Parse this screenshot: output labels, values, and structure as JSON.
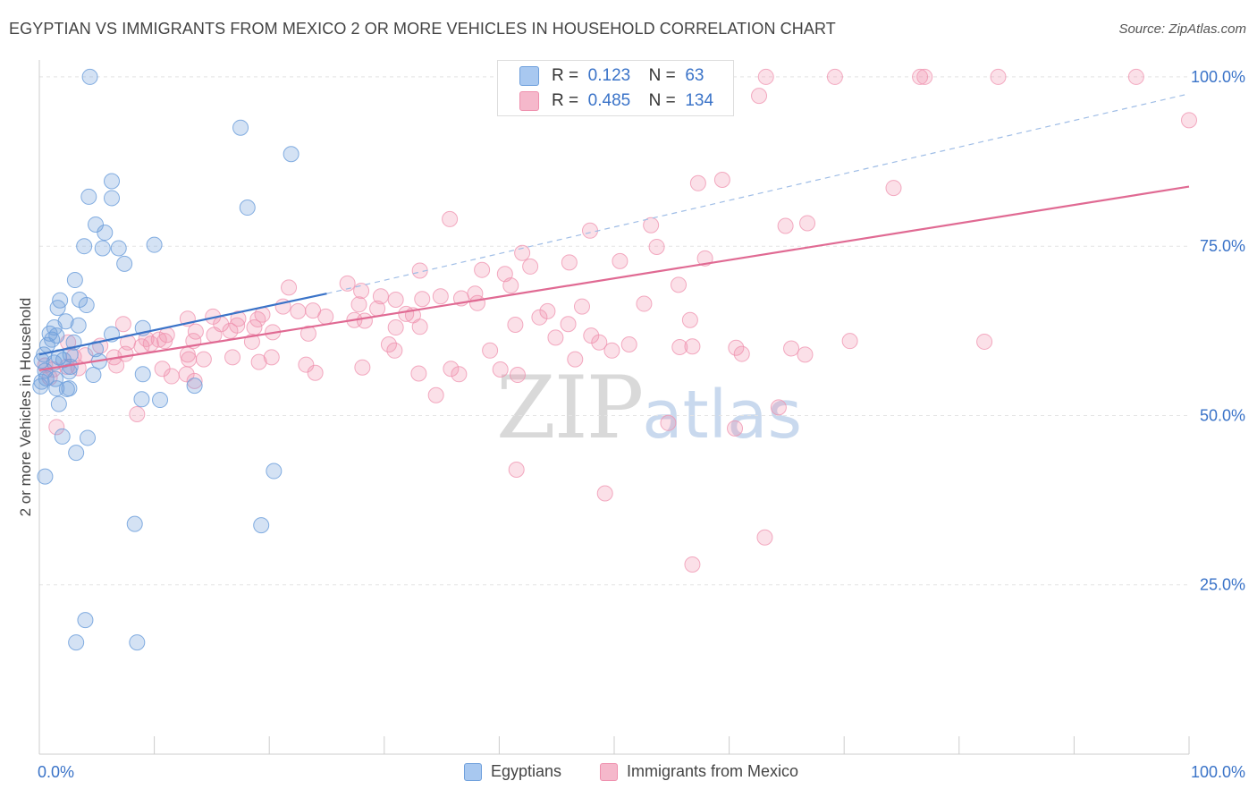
{
  "title": "EGYPTIAN VS IMMIGRANTS FROM MEXICO 2 OR MORE VEHICLES IN HOUSEHOLD CORRELATION CHART",
  "source": "Source: ZipAtlas.com",
  "watermark": {
    "zip": "ZIP",
    "atlas": "atlas"
  },
  "legend_box": {
    "rows": [
      {
        "r_label": "R =",
        "r_value": "0.123",
        "n_label": "N =",
        "n_value": "63",
        "color": "#a8c8f0"
      },
      {
        "r_label": "R =",
        "r_value": "0.485",
        "n_label": "N =",
        "n_value": "134",
        "color": "#f5b8cb"
      }
    ]
  },
  "legend_bottom": [
    {
      "label": "Egyptians",
      "color": "#a8c8f0"
    },
    {
      "label": "Immigrants from Mexico",
      "color": "#f5b8cb"
    }
  ],
  "chart_data": {
    "type": "scatter",
    "title": "EGYPTIAN VS IMMIGRANTS FROM MEXICO 2 OR MORE VEHICLES IN HOUSEHOLD CORRELATION CHART",
    "xlabel": "",
    "ylabel": "2 or more Vehicles in Household",
    "xlim": [
      0,
      100
    ],
    "ylim": [
      0,
      102.5
    ],
    "x_tick_labels": [
      "0.0%",
      "100.0%"
    ],
    "y_ticks": [
      25,
      50,
      75,
      100
    ],
    "y_tick_labels": [
      "25.0%",
      "50.0%",
      "75.0%",
      "100.0%"
    ],
    "colors": {
      "egyptians": "#6fa0dc",
      "mexico": "#ef90ae",
      "egyptians_line": "#3a73c8",
      "mexico_line": "#e06a93",
      "axis_text": "#3a73c8"
    },
    "series": [
      {
        "name": "Egyptians",
        "trend": {
          "x": [
            0,
            25
          ],
          "y": [
            59,
            68
          ],
          "dashed_to": [
            100,
            97.5
          ]
        },
        "points": [
          [
            4.4,
            100
          ],
          [
            17.5,
            92.5
          ],
          [
            21.9,
            88.6
          ],
          [
            4.3,
            82.3
          ],
          [
            6.3,
            82.1
          ],
          [
            6.3,
            84.6
          ],
          [
            18.1,
            80.7
          ],
          [
            4.9,
            78.2
          ],
          [
            5.7,
            77.0
          ],
          [
            3.9,
            75.0
          ],
          [
            5.5,
            74.7
          ],
          [
            6.9,
            74.7
          ],
          [
            10.0,
            75.2
          ],
          [
            7.4,
            72.4
          ],
          [
            3.1,
            70.0
          ],
          [
            1.8,
            67.0
          ],
          [
            3.5,
            67.1
          ],
          [
            4.1,
            66.3
          ],
          [
            1.6,
            65.9
          ],
          [
            2.3,
            63.9
          ],
          [
            1.3,
            63.0
          ],
          [
            3.4,
            63.3
          ],
          [
            9.0,
            62.9
          ],
          [
            0.9,
            62.1
          ],
          [
            1.5,
            61.8
          ],
          [
            6.3,
            62.0
          ],
          [
            1.1,
            61.2
          ],
          [
            0.7,
            60.4
          ],
          [
            2.7,
            59.0
          ],
          [
            4.9,
            59.8
          ],
          [
            0.4,
            59.0
          ],
          [
            0.2,
            58.1
          ],
          [
            1.3,
            57.8
          ],
          [
            2.1,
            58.2
          ],
          [
            5.2,
            58.0
          ],
          [
            2.7,
            57.2
          ],
          [
            0.5,
            56.6
          ],
          [
            2.6,
            56.5
          ],
          [
            4.7,
            56.0
          ],
          [
            9.0,
            56.1
          ],
          [
            0.6,
            55.5
          ],
          [
            1.4,
            55.4
          ],
          [
            0.2,
            55.0
          ],
          [
            1.5,
            54.0
          ],
          [
            2.6,
            54.0
          ],
          [
            0.1,
            54.3
          ],
          [
            13.5,
            54.4
          ],
          [
            2.4,
            53.9
          ],
          [
            8.9,
            52.4
          ],
          [
            10.5,
            52.3
          ],
          [
            1.7,
            51.7
          ],
          [
            2.0,
            46.9
          ],
          [
            4.2,
            46.7
          ],
          [
            3.2,
            44.5
          ],
          [
            0.5,
            41.0
          ],
          [
            20.4,
            41.8
          ],
          [
            8.3,
            34.0
          ],
          [
            19.3,
            33.8
          ],
          [
            4.0,
            19.8
          ],
          [
            3.2,
            16.5
          ],
          [
            8.5,
            16.5
          ],
          [
            1.7,
            58.6
          ],
          [
            3.0,
            60.8
          ]
        ]
      },
      {
        "name": "Immigrants from Mexico",
        "trend": {
          "x": [
            0,
            100
          ],
          "y": [
            56.7,
            83.8
          ]
        },
        "points": [
          [
            55.8,
            100
          ],
          [
            63.2,
            100
          ],
          [
            69.2,
            100
          ],
          [
            76.6,
            100
          ],
          [
            77.0,
            100
          ],
          [
            83.4,
            100
          ],
          [
            95.4,
            100
          ],
          [
            62.6,
            97.2
          ],
          [
            100,
            93.6
          ],
          [
            57.3,
            84.3
          ],
          [
            59.4,
            84.8
          ],
          [
            74.3,
            83.6
          ],
          [
            35.7,
            79.0
          ],
          [
            53.2,
            78.1
          ],
          [
            64.9,
            78.0
          ],
          [
            66.8,
            78.4
          ],
          [
            47.9,
            77.3
          ],
          [
            53.7,
            74.9
          ],
          [
            42.0,
            74.0
          ],
          [
            57.9,
            73.2
          ],
          [
            46.1,
            72.6
          ],
          [
            50.5,
            72.8
          ],
          [
            42.7,
            72.0
          ],
          [
            33.1,
            71.4
          ],
          [
            38.5,
            71.5
          ],
          [
            40.5,
            70.9
          ],
          [
            55.6,
            69.3
          ],
          [
            26.8,
            69.5
          ],
          [
            41.0,
            69.2
          ],
          [
            21.7,
            68.9
          ],
          [
            28.0,
            68.4
          ],
          [
            37.9,
            68.0
          ],
          [
            29.7,
            67.6
          ],
          [
            34.9,
            67.6
          ],
          [
            36.7,
            67.3
          ],
          [
            31.0,
            67.1
          ],
          [
            33.3,
            67.2
          ],
          [
            38.1,
            66.6
          ],
          [
            27.8,
            66.4
          ],
          [
            52.6,
            66.5
          ],
          [
            47.2,
            66.1
          ],
          [
            21.2,
            66.1
          ],
          [
            29.4,
            65.8
          ],
          [
            22.5,
            65.4
          ],
          [
            23.8,
            65.5
          ],
          [
            31.9,
            65.0
          ],
          [
            44.2,
            65.4
          ],
          [
            19.4,
            64.9
          ],
          [
            32.5,
            64.8
          ],
          [
            43.5,
            64.5
          ],
          [
            15.1,
            64.6
          ],
          [
            12.9,
            64.3
          ],
          [
            17.3,
            64.3
          ],
          [
            24.9,
            64.6
          ],
          [
            19.0,
            64.2
          ],
          [
            27.4,
            64.1
          ],
          [
            56.6,
            64.1
          ],
          [
            41.4,
            63.4
          ],
          [
            46.0,
            63.5
          ],
          [
            15.8,
            63.5
          ],
          [
            17.2,
            63.3
          ],
          [
            18.7,
            63.0
          ],
          [
            7.3,
            63.5
          ],
          [
            33.1,
            63.1
          ],
          [
            16.6,
            62.5
          ],
          [
            20.3,
            62.3
          ],
          [
            23.4,
            62.1
          ],
          [
            13.6,
            62.4
          ],
          [
            11.1,
            61.9
          ],
          [
            15.2,
            61.9
          ],
          [
            48.0,
            61.8
          ],
          [
            44.9,
            61.5
          ],
          [
            9.3,
            61.3
          ],
          [
            10.9,
            61.0
          ],
          [
            13.4,
            61.0
          ],
          [
            18.5,
            60.9
          ],
          [
            7.7,
            60.8
          ],
          [
            9.7,
            60.6
          ],
          [
            70.5,
            61.0
          ],
          [
            82.2,
            60.9
          ],
          [
            48.7,
            60.8
          ],
          [
            51.3,
            60.5
          ],
          [
            30.4,
            60.5
          ],
          [
            56.8,
            60.2
          ],
          [
            60.6,
            60.0
          ],
          [
            55.7,
            60.1
          ],
          [
            65.4,
            59.9
          ],
          [
            30.9,
            59.6
          ],
          [
            39.2,
            59.6
          ],
          [
            49.8,
            59.6
          ],
          [
            61.1,
            59.1
          ],
          [
            66.6,
            59.0
          ],
          [
            12.9,
            59.0
          ],
          [
            16.8,
            58.6
          ],
          [
            6.5,
            58.6
          ],
          [
            7.5,
            59.1
          ],
          [
            4.0,
            58.9
          ],
          [
            14.3,
            58.3
          ],
          [
            19.1,
            57.9
          ],
          [
            23.2,
            57.5
          ],
          [
            28.1,
            57.1
          ],
          [
            35.8,
            56.9
          ],
          [
            40.1,
            56.8
          ],
          [
            33.0,
            56.2
          ],
          [
            41.6,
            56.0
          ],
          [
            11.5,
            55.8
          ],
          [
            12.8,
            56.1
          ],
          [
            13.5,
            55.1
          ],
          [
            6.7,
            57.4
          ],
          [
            2.4,
            57.2
          ],
          [
            3.4,
            57.0
          ],
          [
            1.2,
            56.8
          ],
          [
            0.9,
            55.6
          ],
          [
            3.0,
            58.7
          ],
          [
            2.5,
            60.8
          ],
          [
            0.5,
            57.4
          ],
          [
            36.5,
            56.1
          ],
          [
            5.3,
            60.3
          ],
          [
            24.0,
            56.3
          ],
          [
            10.7,
            56.9
          ],
          [
            8.9,
            60.2
          ],
          [
            10.4,
            61.2
          ],
          [
            13.0,
            58.3
          ],
          [
            46.6,
            58.3
          ],
          [
            20.2,
            58.6
          ],
          [
            28.3,
            64.0
          ],
          [
            31.0,
            63.0
          ],
          [
            34.5,
            53.0
          ],
          [
            64.3,
            51.2
          ],
          [
            54.7,
            48.9
          ],
          [
            60.5,
            48.1
          ],
          [
            41.5,
            42.0
          ],
          [
            56.8,
            28.0
          ],
          [
            63.1,
            32.0
          ],
          [
            49.2,
            38.5
          ],
          [
            8.5,
            50.2
          ],
          [
            1.5,
            48.3
          ]
        ]
      }
    ]
  }
}
